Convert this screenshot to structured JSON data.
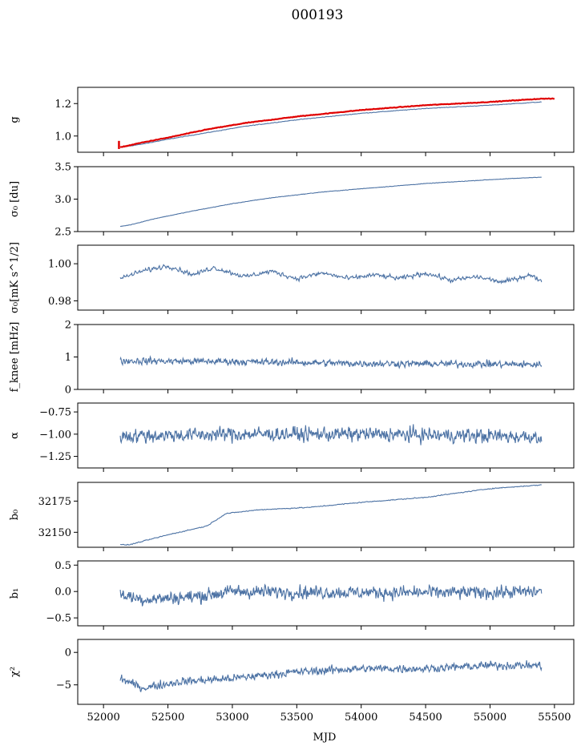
{
  "figure": {
    "title": "000193",
    "xlabel": "MJD"
  },
  "colors": {
    "series": "#4c72a4",
    "highlight": "#e00000",
    "axes": "#000000"
  },
  "chart_data": [
    {
      "id": "g",
      "type": "line",
      "ylabel": "g",
      "ylim": [
        0.9,
        1.3
      ],
      "yticks": [
        1.0,
        1.2
      ],
      "yticklabels": [
        "1.0",
        "1.2"
      ],
      "x": [
        52130,
        52300,
        52500,
        52800,
        53100,
        53500,
        54000,
        54500,
        55000,
        55400
      ],
      "series": [
        {
          "color": "#4c72a4",
          "values": [
            0.93,
            0.95,
            0.98,
            1.02,
            1.06,
            1.1,
            1.14,
            1.17,
            1.19,
            1.21
          ]
        },
        {
          "color": "#e00000",
          "values": [
            0.93,
            0.96,
            0.99,
            1.04,
            1.08,
            1.12,
            1.16,
            1.19,
            1.21,
            1.23
          ],
          "x_end": 55500,
          "end_value": 1.23,
          "spike_x": 52120,
          "spike_range": [
            0.92,
            0.97
          ]
        }
      ],
      "noise": 0.002
    },
    {
      "id": "sigma0-du",
      "type": "line",
      "ylabel": "σ₀ [du]",
      "ylim": [
        2.5,
        3.5
      ],
      "yticks": [
        2.5,
        3.0,
        3.5
      ],
      "yticklabels": [
        "2.5",
        "3.0",
        "3.5"
      ],
      "x": [
        52130,
        52200,
        52400,
        52700,
        53000,
        53300,
        53700,
        54000,
        54500,
        55000,
        55400
      ],
      "series": [
        {
          "color": "#4c72a4",
          "values": [
            2.58,
            2.6,
            2.7,
            2.82,
            2.93,
            3.02,
            3.11,
            3.16,
            3.24,
            3.3,
            3.34
          ]
        }
      ],
      "noise": 0.004
    },
    {
      "id": "sigma0-mk",
      "type": "line",
      "ylabel": "σ₀[mK s^1/2]",
      "ylim": [
        0.975,
        1.01
      ],
      "yticks": [
        0.98,
        1.0
      ],
      "yticklabels": [
        "0.98",
        "1.00"
      ],
      "x": [
        52130,
        52300,
        52500,
        52700,
        52850,
        53100,
        53300,
        53500,
        53700,
        53900,
        54100,
        54300,
        54500,
        54700,
        54900,
        55100,
        55300,
        55400
      ],
      "series": [
        {
          "color": "#4c72a4",
          "values": [
            0.992,
            0.996,
            0.999,
            0.994,
            0.998,
            0.993,
            0.996,
            0.992,
            0.995,
            0.992,
            0.994,
            0.992,
            0.995,
            0.991,
            0.993,
            0.99,
            0.994,
            0.991
          ]
        }
      ],
      "noise": 0.0014
    },
    {
      "id": "fknee",
      "type": "line",
      "ylabel": "f_knee [mHz]",
      "ylim": [
        0,
        2
      ],
      "yticks": [
        0,
        1,
        2
      ],
      "yticklabels": [
        "0",
        "1",
        "2"
      ],
      "x": [
        52130,
        53000,
        54000,
        55000,
        55400
      ],
      "series": [
        {
          "color": "#4c72a4",
          "values": [
            0.88,
            0.86,
            0.8,
            0.78,
            0.76
          ]
        }
      ],
      "noise": 0.12
    },
    {
      "id": "alpha",
      "type": "line",
      "ylabel": "α",
      "ylim": [
        -1.38,
        -0.65
      ],
      "yticks": [
        -1.25,
        -1.0,
        -0.75
      ],
      "yticklabels": [
        "−1.25",
        "−1.00",
        "−0.75"
      ],
      "x": [
        52130,
        53000,
        54000,
        55000,
        55400
      ],
      "series": [
        {
          "color": "#4c72a4",
          "values": [
            -1.02,
            -1.0,
            -1.0,
            -1.02,
            -1.03
          ]
        }
      ],
      "noise": 0.09
    },
    {
      "id": "b0",
      "type": "line",
      "ylabel": "b₀",
      "ylim": [
        32138,
        32190
      ],
      "yticks": [
        32150,
        32175
      ],
      "yticklabels": [
        "32150",
        "32175"
      ],
      "x": [
        52130,
        52200,
        52500,
        52800,
        52950,
        53200,
        53600,
        54000,
        54500,
        55000,
        55400
      ],
      "series": [
        {
          "color": "#4c72a4",
          "values": [
            32140,
            32140,
            32148,
            32155,
            32165,
            32168,
            32170,
            32174,
            32178,
            32185,
            32188
          ]
        }
      ],
      "noise": 0.4
    },
    {
      "id": "b1",
      "type": "line",
      "ylabel": "b₁",
      "ylim": [
        -0.65,
        0.58
      ],
      "yticks": [
        -0.5,
        0.0,
        0.5
      ],
      "yticklabels": [
        "−0.5",
        "0.0",
        "0.5"
      ],
      "x": [
        52130,
        52300,
        52700,
        53000,
        54000,
        55000,
        55400
      ],
      "series": [
        {
          "color": "#4c72a4",
          "values": [
            -0.05,
            -0.15,
            -0.1,
            0.0,
            -0.02,
            -0.02,
            0.0
          ]
        }
      ],
      "noise": 0.14
    },
    {
      "id": "chi2",
      "type": "line",
      "ylabel": "χ²",
      "ylim": [
        -8,
        2
      ],
      "yticks": [
        -5,
        0
      ],
      "yticklabels": [
        "−5",
        "0"
      ],
      "x": [
        52130,
        52300,
        52600,
        53000,
        53500,
        54000,
        54500,
        55000,
        55400
      ],
      "series": [
        {
          "color": "#4c72a4",
          "values": [
            -4.0,
            -5.5,
            -4.5,
            -4.0,
            -3.0,
            -2.5,
            -2.5,
            -2.0,
            -2.0
          ]
        }
      ],
      "noise": 0.7
    }
  ],
  "xaxis": {
    "xlim": [
      51800,
      55650
    ],
    "ticks": [
      52000,
      52500,
      53000,
      53500,
      54000,
      54500,
      55000,
      55500
    ],
    "ticklabels": [
      "52000",
      "52500",
      "53000",
      "53500",
      "54000",
      "54500",
      "55000",
      "55500"
    ]
  }
}
